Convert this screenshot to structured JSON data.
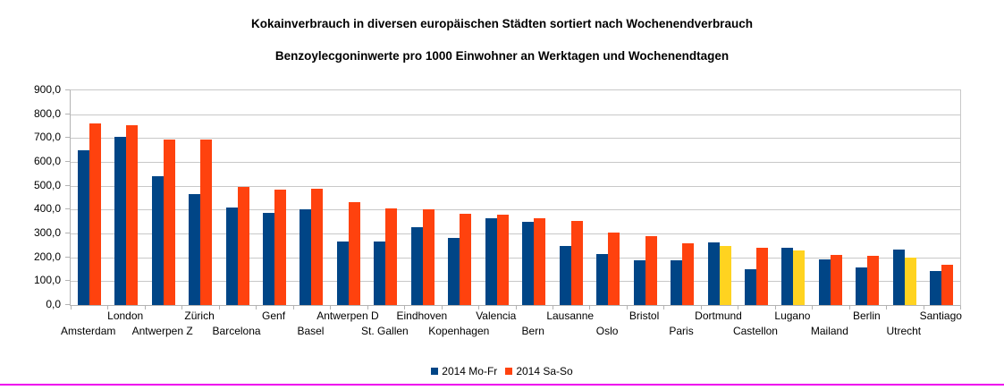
{
  "page": {
    "title": "Kokainverbrauch in diversen europäischen Städten sortiert nach Wochenendverbrauch",
    "subtitle": "Benzoylecgoninwerte pro 1000 Einwohner an Werktagen und Wochenendtagen"
  },
  "colors": {
    "weekday_blue": "#004586",
    "weekend_red": "#FF420E",
    "weekend_highlight_yellow": "#FFD320",
    "gridline": "#C8C8C8",
    "axis": "#B3B3B3",
    "bottom_rule_magenta": "#EE00EE"
  },
  "legend": {
    "items": [
      {
        "label": "2014 Mo-Fr",
        "color": "#004586"
      },
      {
        "label": "2014 Sa-So",
        "color": "#FF420E"
      }
    ]
  },
  "chart_data": {
    "type": "bar",
    "title": "Kokainverbrauch in diversen europäischen Städten sortiert nach Wochenendverbrauch",
    "subtitle": "Benzoylecgoninwerte pro 1000 Einwohner an Werktagen und Wochenendtagen",
    "categories": [
      "Amsterdam",
      "London",
      "Antwerpen Z",
      "Zürich",
      "Barcelona",
      "Genf",
      "Basel",
      "Antwerpen D",
      "St. Gallen",
      "Eindhoven",
      "Kopenhagen",
      "Valencia",
      "Bern",
      "Lausanne",
      "Oslo",
      "Bristol",
      "Paris",
      "Dortmund",
      "Castellon",
      "Lugano",
      "Mailand",
      "Berlin",
      "Utrecht",
      "Santiago"
    ],
    "series": [
      {
        "name": "2014 Mo-Fr",
        "color": "#004586",
        "values": [
          650,
          705,
          540,
          465,
          410,
          388,
          400,
          265,
          267,
          325,
          280,
          365,
          350,
          249,
          212,
          188,
          187,
          264,
          150,
          241,
          192,
          158,
          232,
          142
        ]
      },
      {
        "name": "2014 Sa-So",
        "color": "#FF420E",
        "values": [
          762,
          755,
          695,
          695,
          494,
          485,
          487,
          432,
          405,
          402,
          383,
          378,
          365,
          351,
          304,
          288,
          260,
          249,
          241,
          229,
          210,
          206,
          197,
          168
        ],
        "highlight": {
          "color": "#FFD320",
          "indices": [
            17,
            19,
            22
          ],
          "categories": [
            "Dortmund",
            "Lugano",
            "Utrecht"
          ],
          "meaning": "weekend value lower than weekday value"
        }
      }
    ],
    "ylim": [
      0,
      900
    ],
    "y_axis": {
      "tick_step": 100,
      "tick_labels": [
        "0,0",
        "100,0",
        "200,0",
        "300,0",
        "400,0",
        "500,0",
        "600,0",
        "700,0",
        "800,0",
        "900,0"
      ]
    },
    "grid": true,
    "legend_position": "bottom",
    "sorted_by": "weekend value descending"
  }
}
